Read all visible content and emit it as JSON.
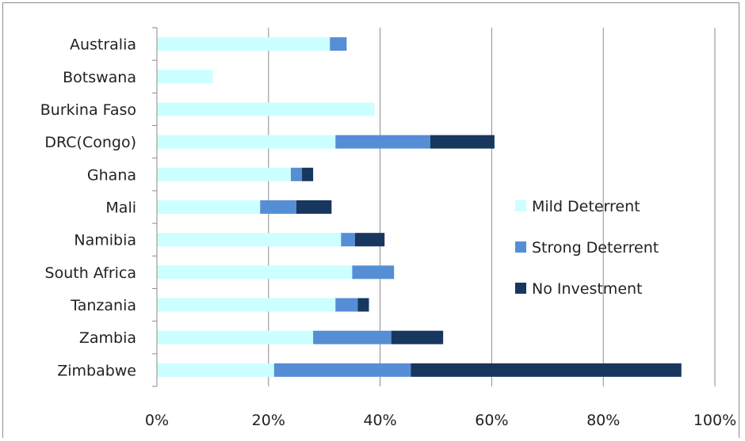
{
  "chart_data": {
    "type": "bar",
    "orientation": "horizontal",
    "stacked": true,
    "title": "",
    "xlabel": "",
    "ylabel": "",
    "xlim": [
      0,
      100
    ],
    "grid": true,
    "legend_position": "right",
    "categories": [
      "Australia",
      "Botswana",
      "Burkina Faso",
      "DRC(Congo)",
      "Ghana",
      "Mali",
      "Namibia",
      "South Africa",
      "Tanzania",
      "Zambia",
      "Zimbabwe"
    ],
    "x_tick_labels": [
      "0%",
      "20%",
      "40%",
      "60%",
      "80%",
      "100%"
    ],
    "series": [
      {
        "name": "Mild Deterrent",
        "color": "#ccffff",
        "values": [
          31,
          10,
          39,
          32,
          24,
          18.5,
          33,
          35,
          32,
          28,
          21
        ]
      },
      {
        "name": "Strong Deterrent",
        "color": "#558ed5",
        "values": [
          3,
          0,
          0,
          17,
          2,
          6.5,
          2.5,
          7.5,
          4,
          14,
          24.5
        ]
      },
      {
        "name": "No Investment",
        "color": "#17375e",
        "values": [
          0,
          0,
          0,
          11.5,
          2,
          6.3,
          5.3,
          0,
          2,
          9.3,
          48.5
        ]
      }
    ]
  }
}
